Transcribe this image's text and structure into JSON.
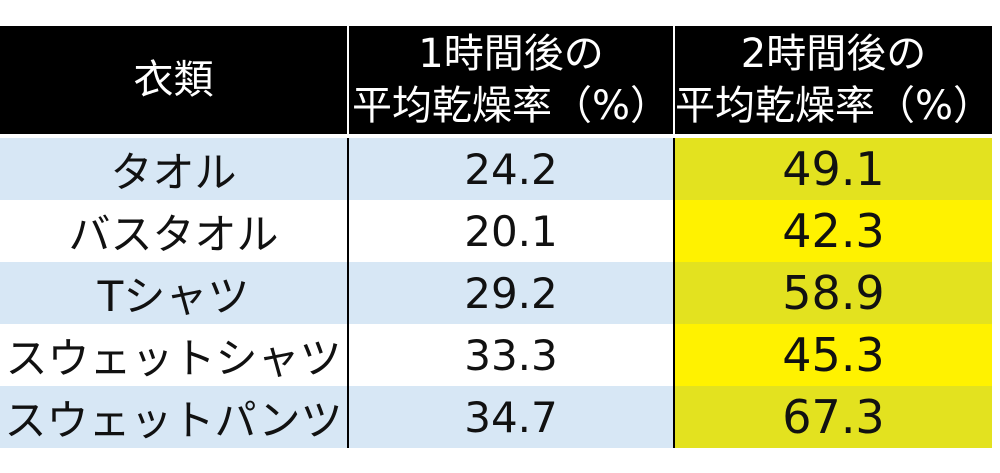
{
  "table": {
    "headers": {
      "clothing": "衣類",
      "h1": [
        "1時間後の",
        "平均乾燥率（%）"
      ],
      "h2": [
        "2時間後の",
        "平均乾燥率（%）"
      ]
    },
    "rows": [
      {
        "clothing": "タオル",
        "h1": "24.2",
        "h2": "49.1"
      },
      {
        "clothing": "バスタオル",
        "h1": "20.1",
        "h2": "42.3"
      },
      {
        "clothing": "Tシャツ",
        "h1": "29.2",
        "h2": "58.9"
      },
      {
        "clothing": "スウェットシャツ",
        "h1": "33.3",
        "h2": "45.3"
      },
      {
        "clothing": "スウェットパンツ",
        "h1": "34.7",
        "h2": "67.3"
      }
    ]
  },
  "colors": {
    "header_bg": "#000000",
    "header_text": "#ffffff",
    "row_blue": "#d7e7f5",
    "row_white": "#ffffff",
    "highlight_dark": "#e3e21f",
    "highlight_light": "#fff200"
  }
}
